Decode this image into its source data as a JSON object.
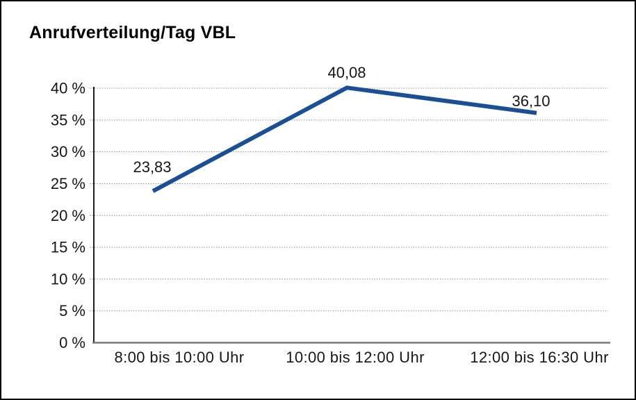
{
  "window": {
    "background": "#ffffff",
    "border_color": "#000000"
  },
  "chart_data": {
    "type": "line",
    "title": "Anrufverteilung/Tag VBL",
    "categories": [
      "8:00 bis 10:00 Uhr",
      "10:00 bis 12:00 Uhr",
      "12:00 bis 16:30 Uhr"
    ],
    "values": [
      23.83,
      40.08,
      36.1
    ],
    "value_labels": [
      "23,83",
      "40,08",
      "36,10"
    ],
    "xlabel": "",
    "ylabel": "",
    "ylim": [
      0,
      40
    ],
    "y_tick_step": 5,
    "y_tick_labels": [
      "0 %",
      "5 %",
      "10 %",
      "15 %",
      "20 %",
      "25 %",
      "30 %",
      "35 %",
      "40 %"
    ],
    "grid": true,
    "grid_style": "dotted",
    "legend": "none",
    "line_color": "#1a4f96",
    "grid_color": "#7f7f7f",
    "axis_color": "#1f1f1f",
    "baseline_color": "#787878",
    "text_color": "#161616"
  }
}
